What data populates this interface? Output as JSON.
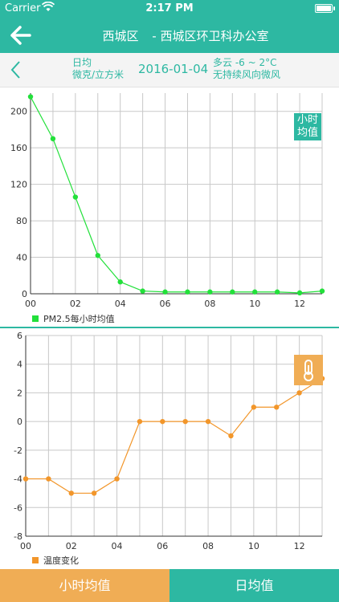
{
  "status": {
    "carrier": "Carrier",
    "time": "2:17 PM"
  },
  "nav": {
    "district": "西城区",
    "station": "- 西城区环卫科办公室"
  },
  "datebar": {
    "period": "日均",
    "unit": "微克/立方米",
    "date": "2016-01-04",
    "weather_line1": "多云 -6 ~ 2°C",
    "weather_line2": "无持续风向微风"
  },
  "badges": {
    "hourly_avg": "小时均值"
  },
  "chart_data": [
    {
      "type": "line",
      "x": [
        0,
        1,
        2,
        3,
        4,
        5,
        6,
        7,
        8,
        9,
        10,
        11,
        12,
        13
      ],
      "series": [
        {
          "name": "PM2.5每小时均值",
          "values": [
            216,
            170,
            106,
            42,
            13,
            3,
            2,
            2,
            2,
            2,
            2,
            2,
            1,
            3
          ],
          "color": "#22e03a"
        }
      ],
      "xticks": [
        "00",
        "02",
        "04",
        "06",
        "08",
        "10",
        "12"
      ],
      "yticks": [
        "0",
        "40",
        "80",
        "120",
        "160",
        "200"
      ],
      "xlim": [
        0,
        13
      ],
      "ylim": [
        0,
        220
      ],
      "grid": true,
      "legend": "bottom-left"
    },
    {
      "type": "line",
      "x": [
        0,
        1,
        2,
        3,
        4,
        5,
        6,
        7,
        8,
        9,
        10,
        11,
        12,
        13
      ],
      "series": [
        {
          "name": "温度变化",
          "values": [
            -4,
            -4,
            -5,
            -5,
            -4,
            0,
            0,
            0,
            0,
            -1,
            1,
            1,
            2,
            3
          ],
          "color": "#f2962a"
        }
      ],
      "xticks": [
        "00",
        "02",
        "04",
        "06",
        "08",
        "10",
        "12"
      ],
      "yticks": [
        "-8",
        "-6",
        "-4",
        "-2",
        "0",
        "2",
        "4",
        "6"
      ],
      "xlim": [
        0,
        13
      ],
      "ylim": [
        -8,
        6
      ],
      "grid": true,
      "legend": "bottom-left"
    }
  ],
  "tabs": {
    "hourly": "小时均值",
    "daily": "日均值"
  }
}
